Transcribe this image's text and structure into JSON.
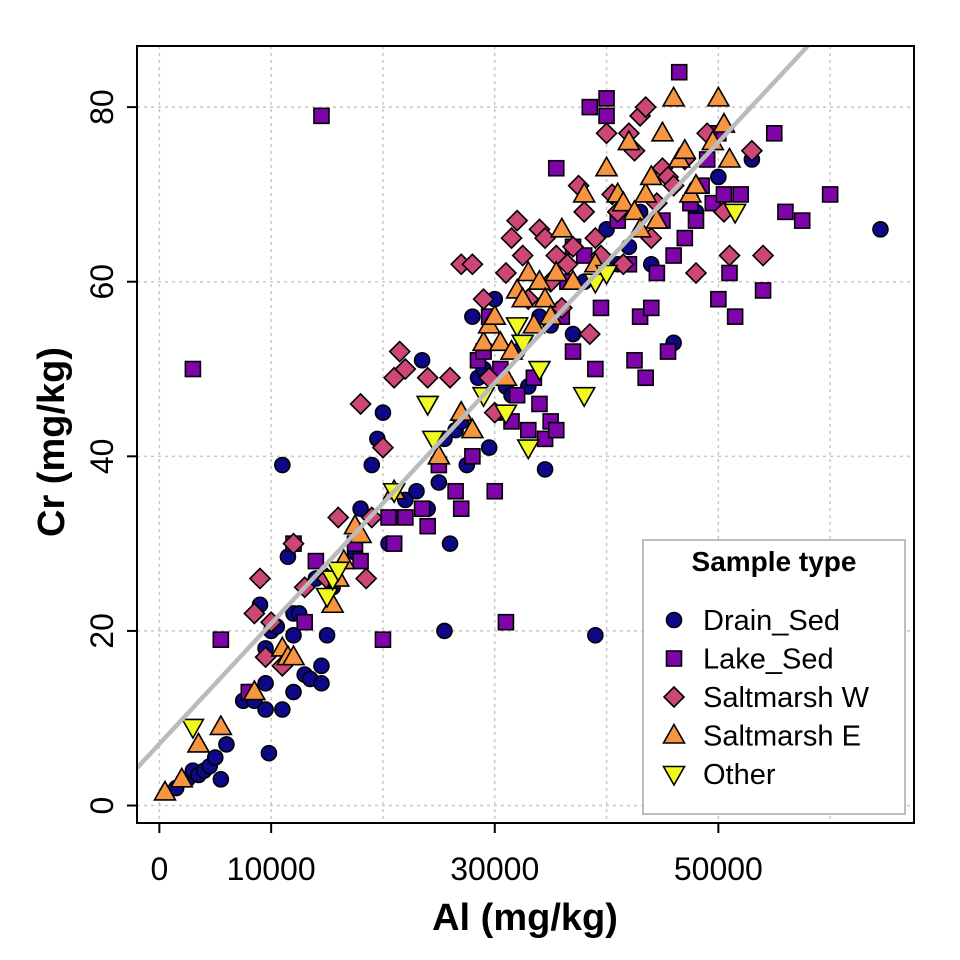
{
  "chart_data": {
    "type": "scatter",
    "xlabel": "Al (mg/kg)",
    "ylabel": "Cr (mg/kg)",
    "xlim": [
      -2000,
      67500
    ],
    "ylim": [
      -2,
      87
    ],
    "xticks": [
      0,
      10000,
      30000,
      50000
    ],
    "xtick_labels": [
      "0",
      "10000",
      "30000",
      "50000"
    ],
    "xgrid": [
      0,
      10000,
      20000,
      30000,
      40000,
      50000,
      60000
    ],
    "yticks": [
      0,
      20,
      40,
      60,
      80
    ],
    "ytick_labels": [
      "0",
      "20",
      "40",
      "60",
      "80"
    ],
    "grid": "dotted",
    "legend_title": "Sample type",
    "legend_position": "bottom-right",
    "trend_line": {
      "color": "#bbbbbb",
      "points": [
        [
          -2000,
          4.3
        ],
        [
          58000,
          87
        ]
      ]
    },
    "series": [
      {
        "name": "Drain_Sed",
        "shape": "circle",
        "color": "#0d0887",
        "points": [
          [
            1500,
            2
          ],
          [
            2500,
            3
          ],
          [
            3000,
            4
          ],
          [
            3500,
            3.5
          ],
          [
            4000,
            4
          ],
          [
            4500,
            4.5
          ],
          [
            5000,
            5.5
          ],
          [
            5500,
            3
          ],
          [
            6000,
            7
          ],
          [
            7500,
            12
          ],
          [
            8000,
            13
          ],
          [
            8500,
            12
          ],
          [
            9000,
            23
          ],
          [
            9500,
            14
          ],
          [
            9500,
            11
          ],
          [
            9500,
            18
          ],
          [
            10000,
            20
          ],
          [
            9800,
            6
          ],
          [
            10500,
            20.5
          ],
          [
            11000,
            11
          ],
          [
            11000,
            39
          ],
          [
            11500,
            28.5
          ],
          [
            12000,
            22
          ],
          [
            12000,
            13
          ],
          [
            12000,
            19.5
          ],
          [
            12500,
            22
          ],
          [
            13000,
            15
          ],
          [
            13500,
            14.5
          ],
          [
            14000,
            26
          ],
          [
            14500,
            14
          ],
          [
            14500,
            16
          ],
          [
            15000,
            19.5
          ],
          [
            15500,
            25
          ],
          [
            17500,
            29
          ],
          [
            18000,
            34
          ],
          [
            19000,
            39
          ],
          [
            19500,
            42
          ],
          [
            20000,
            45
          ],
          [
            20500,
            30
          ],
          [
            21000,
            33
          ],
          [
            22000,
            35
          ],
          [
            23000,
            36
          ],
          [
            23500,
            51
          ],
          [
            24000,
            34
          ],
          [
            25000,
            37
          ],
          [
            25500,
            42
          ],
          [
            25500,
            20
          ],
          [
            26000,
            30
          ],
          [
            26500,
            43
          ],
          [
            27000,
            44
          ],
          [
            27500,
            39
          ],
          [
            28000,
            56
          ],
          [
            28500,
            49
          ],
          [
            29000,
            50
          ],
          [
            29500,
            41
          ],
          [
            30000,
            58
          ],
          [
            30500,
            45
          ],
          [
            31000,
            48
          ],
          [
            31500,
            47
          ],
          [
            32000,
            52
          ],
          [
            33000,
            48
          ],
          [
            34000,
            56
          ],
          [
            34500,
            38.5
          ],
          [
            35000,
            55
          ],
          [
            36000,
            57
          ],
          [
            37000,
            54
          ],
          [
            38000,
            60
          ],
          [
            39000,
            19.5
          ],
          [
            40000,
            66
          ],
          [
            41000,
            62
          ],
          [
            42000,
            64
          ],
          [
            43000,
            68
          ],
          [
            44000,
            62
          ],
          [
            46000,
            53
          ],
          [
            48000,
            68
          ],
          [
            50000,
            72
          ],
          [
            53000,
            74
          ],
          [
            64500,
            66
          ]
        ]
      },
      {
        "name": "Lake_Sed",
        "shape": "square",
        "color": "#7e03a8",
        "points": [
          [
            3000,
            50
          ],
          [
            5500,
            19
          ],
          [
            8000,
            13
          ],
          [
            12000,
            30
          ],
          [
            13000,
            21
          ],
          [
            14000,
            28
          ],
          [
            14500,
            79
          ],
          [
            17500,
            30
          ],
          [
            18000,
            28
          ],
          [
            20000,
            19
          ],
          [
            20500,
            33
          ],
          [
            21000,
            30
          ],
          [
            22000,
            33
          ],
          [
            23500,
            34
          ],
          [
            24000,
            32
          ],
          [
            25000,
            39
          ],
          [
            26500,
            36
          ],
          [
            27000,
            34
          ],
          [
            28000,
            40
          ],
          [
            28500,
            51
          ],
          [
            29000,
            52
          ],
          [
            29500,
            56
          ],
          [
            30000,
            36
          ],
          [
            30500,
            50
          ],
          [
            31000,
            21
          ],
          [
            31500,
            44
          ],
          [
            32000,
            47
          ],
          [
            33000,
            43
          ],
          [
            33500,
            49
          ],
          [
            34000,
            46
          ],
          [
            34500,
            42
          ],
          [
            35000,
            44
          ],
          [
            35500,
            43
          ],
          [
            35500,
            73
          ],
          [
            36000,
            56
          ],
          [
            36500,
            60
          ],
          [
            37000,
            64
          ],
          [
            37000,
            52
          ],
          [
            38000,
            63
          ],
          [
            38500,
            80
          ],
          [
            39000,
            50
          ],
          [
            39500,
            57
          ],
          [
            40000,
            81
          ],
          [
            40000,
            79
          ],
          [
            41000,
            67
          ],
          [
            42000,
            62
          ],
          [
            42500,
            51
          ],
          [
            43000,
            56
          ],
          [
            43500,
            49
          ],
          [
            44000,
            57
          ],
          [
            44500,
            61
          ],
          [
            45000,
            67
          ],
          [
            45500,
            52
          ],
          [
            46000,
            63
          ],
          [
            46500,
            84
          ],
          [
            47000,
            65
          ],
          [
            47500,
            69
          ],
          [
            48000,
            67
          ],
          [
            48500,
            71
          ],
          [
            49000,
            74
          ],
          [
            49500,
            69
          ],
          [
            50000,
            77
          ],
          [
            50000,
            58
          ],
          [
            50500,
            70
          ],
          [
            51000,
            61
          ],
          [
            51500,
            56
          ],
          [
            52000,
            70
          ],
          [
            54000,
            59
          ],
          [
            55000,
            77
          ],
          [
            56000,
            68
          ],
          [
            57500,
            67
          ],
          [
            60000,
            70
          ]
        ]
      },
      {
        "name": "Saltmarsh W",
        "shape": "diamond",
        "color": "#cc4778",
        "points": [
          [
            8500,
            22
          ],
          [
            9000,
            26
          ],
          [
            9500,
            17
          ],
          [
            10000,
            21
          ],
          [
            11000,
            16
          ],
          [
            12000,
            30
          ],
          [
            13000,
            25
          ],
          [
            15000,
            26
          ],
          [
            16000,
            33
          ],
          [
            18000,
            46
          ],
          [
            18500,
            26
          ],
          [
            19000,
            33
          ],
          [
            20000,
            41
          ],
          [
            21000,
            49
          ],
          [
            21500,
            52
          ],
          [
            22000,
            50
          ],
          [
            24000,
            49
          ],
          [
            26000,
            49
          ],
          [
            27000,
            62
          ],
          [
            28000,
            62
          ],
          [
            29000,
            58
          ],
          [
            29500,
            49
          ],
          [
            30000,
            45
          ],
          [
            31000,
            61
          ],
          [
            31500,
            65
          ],
          [
            32000,
            67
          ],
          [
            32500,
            63
          ],
          [
            33000,
            58
          ],
          [
            34000,
            66
          ],
          [
            34500,
            65
          ],
          [
            35000,
            60
          ],
          [
            35500,
            63
          ],
          [
            36000,
            57
          ],
          [
            36500,
            62
          ],
          [
            37000,
            64
          ],
          [
            37500,
            71
          ],
          [
            38000,
            68
          ],
          [
            38500,
            54
          ],
          [
            39000,
            65
          ],
          [
            39500,
            63
          ],
          [
            40000,
            77
          ],
          [
            40500,
            70
          ],
          [
            41000,
            68
          ],
          [
            41500,
            62
          ],
          [
            42000,
            77
          ],
          [
            42500,
            75
          ],
          [
            43000,
            79
          ],
          [
            43500,
            80
          ],
          [
            44000,
            65
          ],
          [
            44500,
            69
          ],
          [
            45000,
            73
          ],
          [
            45500,
            72
          ],
          [
            46000,
            71
          ],
          [
            47000,
            74
          ],
          [
            48000,
            61
          ],
          [
            49000,
            77
          ],
          [
            50500,
            68
          ],
          [
            51000,
            63
          ],
          [
            53000,
            75
          ],
          [
            54000,
            63
          ]
        ]
      },
      {
        "name": "Saltmarsh E",
        "shape": "triangle-up",
        "color": "#f89540",
        "points": [
          [
            500,
            1.5
          ],
          [
            2000,
            3
          ],
          [
            3500,
            7
          ],
          [
            5500,
            9
          ],
          [
            8500,
            13
          ],
          [
            11000,
            18
          ],
          [
            11500,
            17
          ],
          [
            12000,
            17
          ],
          [
            15500,
            23
          ],
          [
            16000,
            26
          ],
          [
            16500,
            28
          ],
          [
            17500,
            32
          ],
          [
            18000,
            31
          ],
          [
            21000,
            36
          ],
          [
            25000,
            40
          ],
          [
            27000,
            45
          ],
          [
            28000,
            43
          ],
          [
            29000,
            53
          ],
          [
            29500,
            55
          ],
          [
            30000,
            56
          ],
          [
            30500,
            53
          ],
          [
            31000,
            49
          ],
          [
            31500,
            52
          ],
          [
            32000,
            59
          ],
          [
            32500,
            58
          ],
          [
            33000,
            61
          ],
          [
            33500,
            55
          ],
          [
            34000,
            60
          ],
          [
            34500,
            58
          ],
          [
            35000,
            56
          ],
          [
            35500,
            61
          ],
          [
            36000,
            66
          ],
          [
            37000,
            60
          ],
          [
            38000,
            70
          ],
          [
            39000,
            62
          ],
          [
            40000,
            73
          ],
          [
            41000,
            70
          ],
          [
            41500,
            69
          ],
          [
            42000,
            76
          ],
          [
            42500,
            68
          ],
          [
            43000,
            66
          ],
          [
            43500,
            70
          ],
          [
            44000,
            72
          ],
          [
            44500,
            67
          ],
          [
            45000,
            77
          ],
          [
            46000,
            81
          ],
          [
            46500,
            74
          ],
          [
            47000,
            75
          ],
          [
            47500,
            70
          ],
          [
            48000,
            71
          ],
          [
            49500,
            76
          ],
          [
            50000,
            81
          ],
          [
            50500,
            78
          ],
          [
            51000,
            74
          ]
        ]
      },
      {
        "name": "Other",
        "shape": "triangle-down",
        "color": "#f0f921",
        "points": [
          [
            3000,
            9
          ],
          [
            15000,
            24
          ],
          [
            15500,
            26
          ],
          [
            16000,
            27
          ],
          [
            21000,
            36
          ],
          [
            24000,
            46
          ],
          [
            24500,
            42
          ],
          [
            29000,
            47
          ],
          [
            31000,
            45
          ],
          [
            32000,
            55
          ],
          [
            32500,
            53
          ],
          [
            33000,
            41
          ],
          [
            34000,
            50
          ],
          [
            38000,
            47
          ],
          [
            39000,
            60
          ],
          [
            40000,
            61
          ],
          [
            51500,
            68
          ]
        ]
      }
    ]
  }
}
